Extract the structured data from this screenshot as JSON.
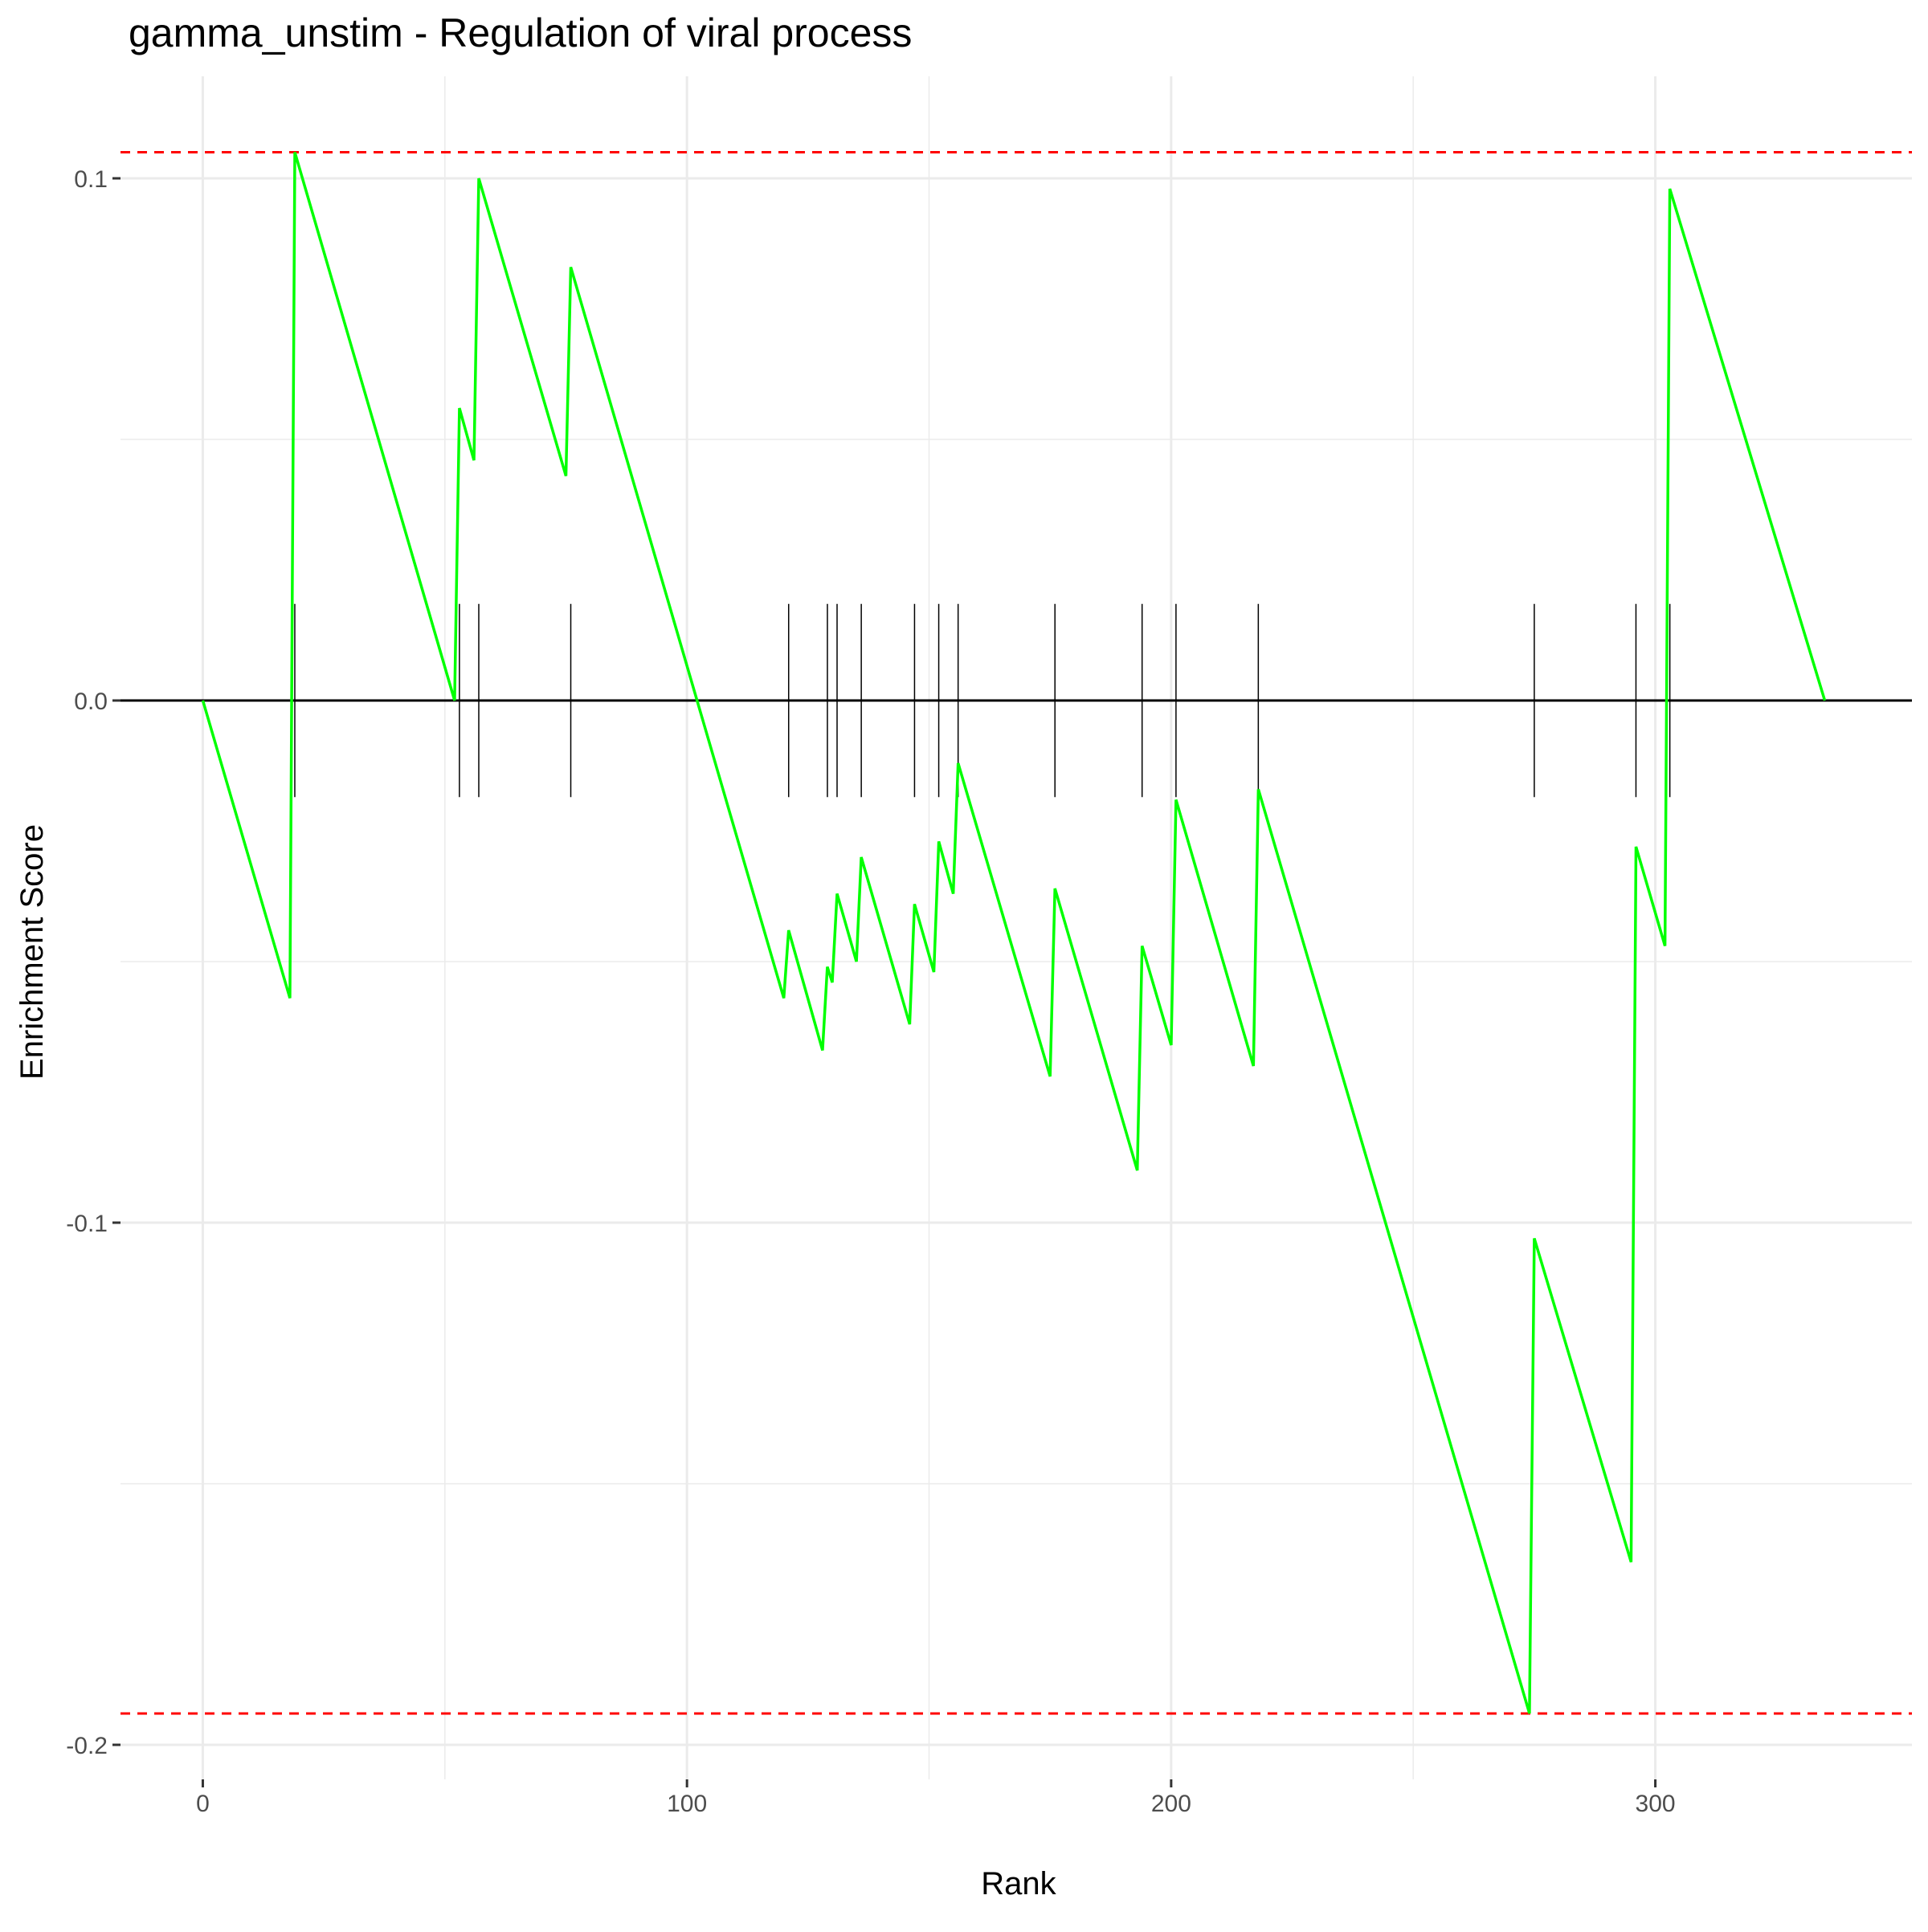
{
  "chart_data": {
    "type": "line",
    "title": "gamma_unstim - Regulation of viral process",
    "xlabel": "Rank",
    "ylabel": "Enrichment Score",
    "xlim": [
      -17,
      353
    ],
    "ylim": [
      -0.2,
      0.1
    ],
    "x_ticks": [
      0,
      100,
      200,
      300
    ],
    "x_tick_labels": [
      "0",
      "100",
      "200",
      "300"
    ],
    "y_ticks": [
      0.1,
      0.0,
      -0.1,
      -0.2
    ],
    "y_tick_labels": [
      "0.1",
      "0.0",
      "-0.1",
      "-0.2"
    ],
    "grid": true,
    "legend": "none",
    "colors": {
      "enrichment_curve": "#00ff00",
      "threshold_lines": "#ff0000",
      "zero_line": "#000000",
      "hit_marks": "#000000",
      "grid": "#ebebeb"
    },
    "series": [
      {
        "values_x": [
          0,
          18,
          19,
          52,
          53,
          56,
          57,
          75,
          76,
          120,
          121,
          128,
          129,
          130,
          131,
          135,
          136,
          146,
          147,
          151,
          152,
          155,
          156,
          175,
          176,
          193,
          194,
          200,
          201,
          217,
          218,
          274,
          275,
          295,
          296,
          302,
          303,
          335
        ],
        "values_y": [
          0.0,
          -0.057,
          0.105,
          0.0,
          0.056,
          0.046,
          0.1,
          0.043,
          0.083,
          -0.057,
          -0.044,
          -0.067,
          -0.051,
          -0.054,
          -0.037,
          -0.05,
          -0.03,
          -0.062,
          -0.039,
          -0.052,
          -0.027,
          -0.037,
          -0.012,
          -0.072,
          -0.036,
          -0.09,
          -0.047,
          -0.066,
          -0.019,
          -0.07,
          -0.017,
          -0.194,
          -0.103,
          -0.165,
          -0.028,
          -0.047,
          0.098,
          0.0
        ]
      }
    ],
    "hits": [
      19,
      53,
      57,
      76,
      121,
      129,
      131,
      136,
      147,
      152,
      156,
      176,
      194,
      201,
      218,
      275,
      296,
      303
    ],
    "hit_mark_range": [
      -0.0185,
      0.0185
    ],
    "threshold_lines": [
      0.105,
      -0.194
    ]
  }
}
